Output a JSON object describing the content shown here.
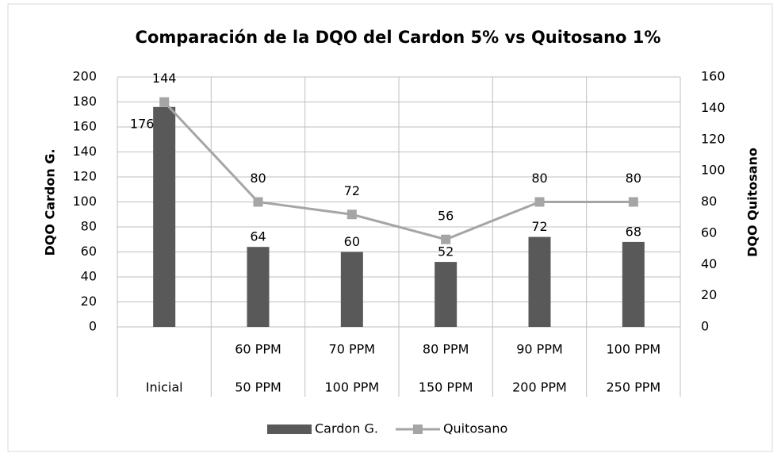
{
  "chart_data": {
    "type": "bar-line",
    "title": "Comparación de la DQO del Cardon 5% vs Quitosano 1%",
    "ylabel": "DQO Cardon G.",
    "y2label": "DQO Quitosano",
    "categories": [
      "Inicial",
      "50 PPM",
      "100 PPM",
      "150 PPM",
      "200 PPM",
      "250 PPM"
    ],
    "subcategories": [
      null,
      "60 PPM",
      "70 PPM",
      "80 PPM",
      "90 PPM",
      "100 PPM"
    ],
    "series": [
      {
        "name": "Cardon G.",
        "type": "bar",
        "color": "#595959",
        "values": [
          176,
          64,
          60,
          52,
          72,
          68
        ]
      },
      {
        "name": "Quitosano",
        "type": "line",
        "axis": "y2",
        "color": "#a5a5a5",
        "values": [
          144,
          80,
          72,
          56,
          80,
          80
        ]
      }
    ],
    "ylim": [
      0,
      200
    ],
    "yticks": [
      0,
      20,
      40,
      60,
      80,
      100,
      120,
      140,
      160,
      180,
      200
    ],
    "y2lim": [
      0,
      160
    ],
    "y2ticks": [
      0,
      20,
      40,
      60,
      80,
      100,
      120,
      140,
      160
    ],
    "grid": true,
    "legend": "bottom"
  }
}
